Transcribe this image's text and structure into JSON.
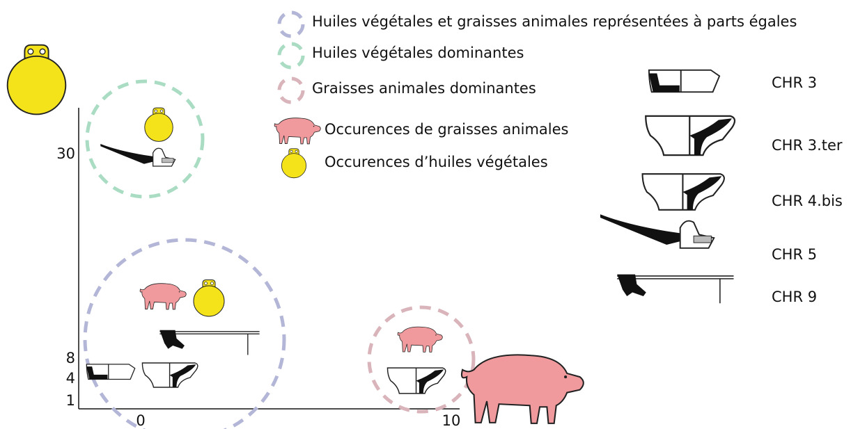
{
  "legend": [
    "Huiles végétales et graisses animales représentées à parts égales",
    "Huiles végétales dominantes",
    "Graisses animales dominantes",
    "Occurences de graisses animales",
    "Occurences d’huiles végétales"
  ],
  "vessels": [
    "CHR 3",
    "CHR 3.ter",
    "CHR 4.bis",
    "CHR 5",
    "CHR 9"
  ],
  "axes": {
    "y_labels": [
      "30",
      "8",
      "4",
      "1"
    ],
    "x_labels": [
      "0",
      "10"
    ]
  }
}
